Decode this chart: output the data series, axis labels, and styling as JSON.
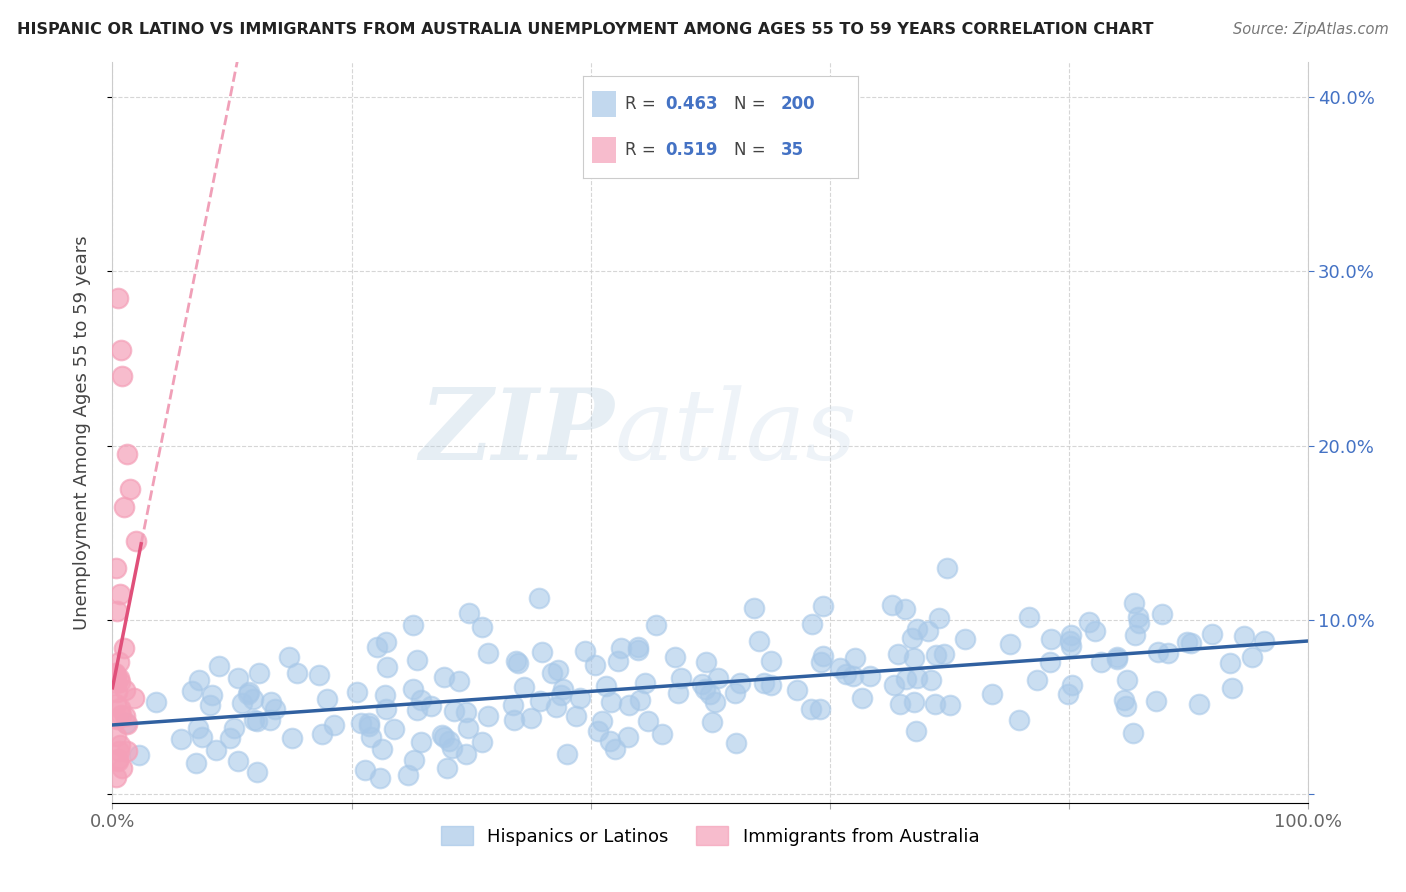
{
  "title": "HISPANIC OR LATINO VS IMMIGRANTS FROM AUSTRALIA UNEMPLOYMENT AMONG AGES 55 TO 59 YEARS CORRELATION CHART",
  "source": "Source: ZipAtlas.com",
  "ylabel": "Unemployment Among Ages 55 to 59 years",
  "watermark_zip": "ZIP",
  "watermark_atlas": "atlas",
  "blue_R": 0.463,
  "blue_N": 200,
  "pink_R": 0.519,
  "pink_N": 35,
  "blue_color": "#a8c8e8",
  "pink_color": "#f4a0b8",
  "blue_trend_color": "#3060a0",
  "pink_trend_color": "#e0507a",
  "pink_dash_color": "#f0a0b8",
  "xlim": [
    0,
    1.0
  ],
  "ylim": [
    -0.005,
    0.42
  ],
  "xticks": [
    0.0,
    0.2,
    0.4,
    0.6,
    0.8,
    1.0
  ],
  "yticks": [
    0.0,
    0.1,
    0.2,
    0.3,
    0.4
  ],
  "xticklabels": [
    "0.0%",
    "",
    "",
    "",
    "",
    "100.0%"
  ],
  "yticklabels": [
    "",
    "",
    "",
    "",
    ""
  ],
  "right_yticklabels": [
    "",
    "10.0%",
    "20.0%",
    "30.0%",
    "40.0%"
  ],
  "legend_label_blue": "Hispanics or Latinos",
  "legend_label_pink": "Immigrants from Australia",
  "figsize": [
    14.06,
    8.92
  ],
  "dpi": 100
}
